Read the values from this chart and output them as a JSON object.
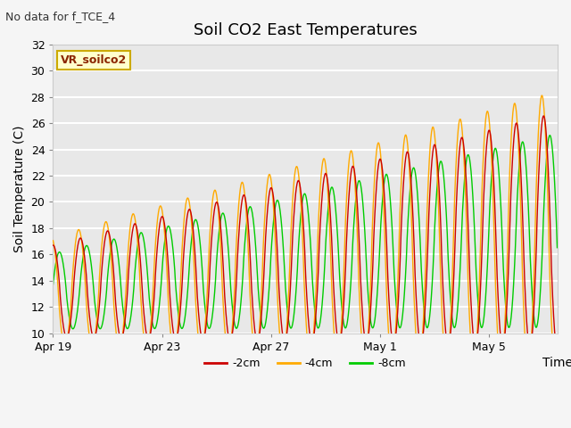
{
  "title": "Soil CO2 East Temperatures",
  "note": "No data for f_TCE_4",
  "ylabel": "Soil Temperature (C)",
  "xlabel": "Time",
  "ylim": [
    10,
    32
  ],
  "yticks": [
    10,
    12,
    14,
    16,
    18,
    20,
    22,
    24,
    26,
    28,
    30,
    32
  ],
  "legend_box_label": "VR_soilco2",
  "legend_entries": [
    "-2cm",
    "-4cm",
    "-8cm"
  ],
  "line_colors": [
    "#cc0000",
    "#ffaa00",
    "#00cc00"
  ],
  "bg_color": "#e8e8e8",
  "grid_color": "#ffffff",
  "fig_bg_color": "#f5f5f5",
  "start_day": 0,
  "end_day": 18.5,
  "n_points": 5000,
  "base_temp_start": 13.2,
  "base_temp_slope": 0.25,
  "amplitude_start": 3.5,
  "amplitude_end": 9.0,
  "period_hours": 24,
  "phase_offsets_hours": [
    0,
    1.5,
    -5.5
  ],
  "amplitude_factors": [
    1.0,
    1.18,
    0.82
  ],
  "xtick_positions": [
    0,
    4,
    8,
    12,
    16
  ],
  "xtick_labels": [
    "Apr 19",
    "Apr 23",
    "Apr 27",
    "May 1",
    "May 5"
  ],
  "tick_fontsize": 9,
  "label_fontsize": 10,
  "title_fontsize": 13,
  "note_fontsize": 9,
  "legend_fontsize": 9
}
